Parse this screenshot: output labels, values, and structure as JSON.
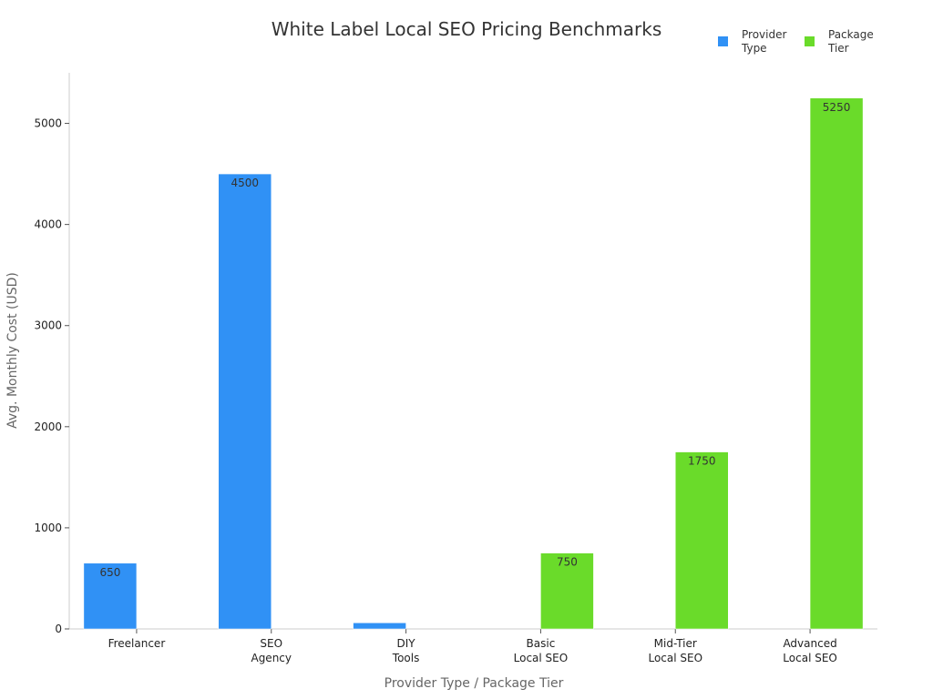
{
  "chart_data": {
    "type": "bar",
    "title": "White Label Local SEO Pricing Benchmarks",
    "xlabel": "Provider Type / Package Tier",
    "ylabel": "Avg. Monthly Cost (USD)",
    "ylim": [
      0,
      5500
    ],
    "yticks": [
      0,
      1000,
      2000,
      3000,
      4000,
      5000
    ],
    "grid": false,
    "legend_position": "top-right",
    "categories": [
      [
        "Freelancer"
      ],
      [
        "SEO",
        "Agency"
      ],
      [
        "DIY",
        "Tools"
      ],
      [
        "Basic",
        "Local SEO"
      ],
      [
        "Mid-Tier",
        "Local SEO"
      ],
      [
        "Advanced",
        "Local SEO"
      ]
    ],
    "series": [
      {
        "name": "Provider Type",
        "legend_lines": [
          "Provider",
          "Type"
        ],
        "color": "#3091f5",
        "values": [
          650,
          4500,
          60,
          null,
          null,
          null
        ],
        "labels": [
          "650",
          "4500",
          "",
          "",
          "",
          ""
        ]
      },
      {
        "name": "Package Tier",
        "legend_lines": [
          "Package",
          "Tier"
        ],
        "color": "#6adb2a",
        "values": [
          null,
          null,
          null,
          750,
          1750,
          5250
        ],
        "labels": [
          "",
          "",
          "",
          "750",
          "1750",
          "5250"
        ]
      }
    ]
  }
}
